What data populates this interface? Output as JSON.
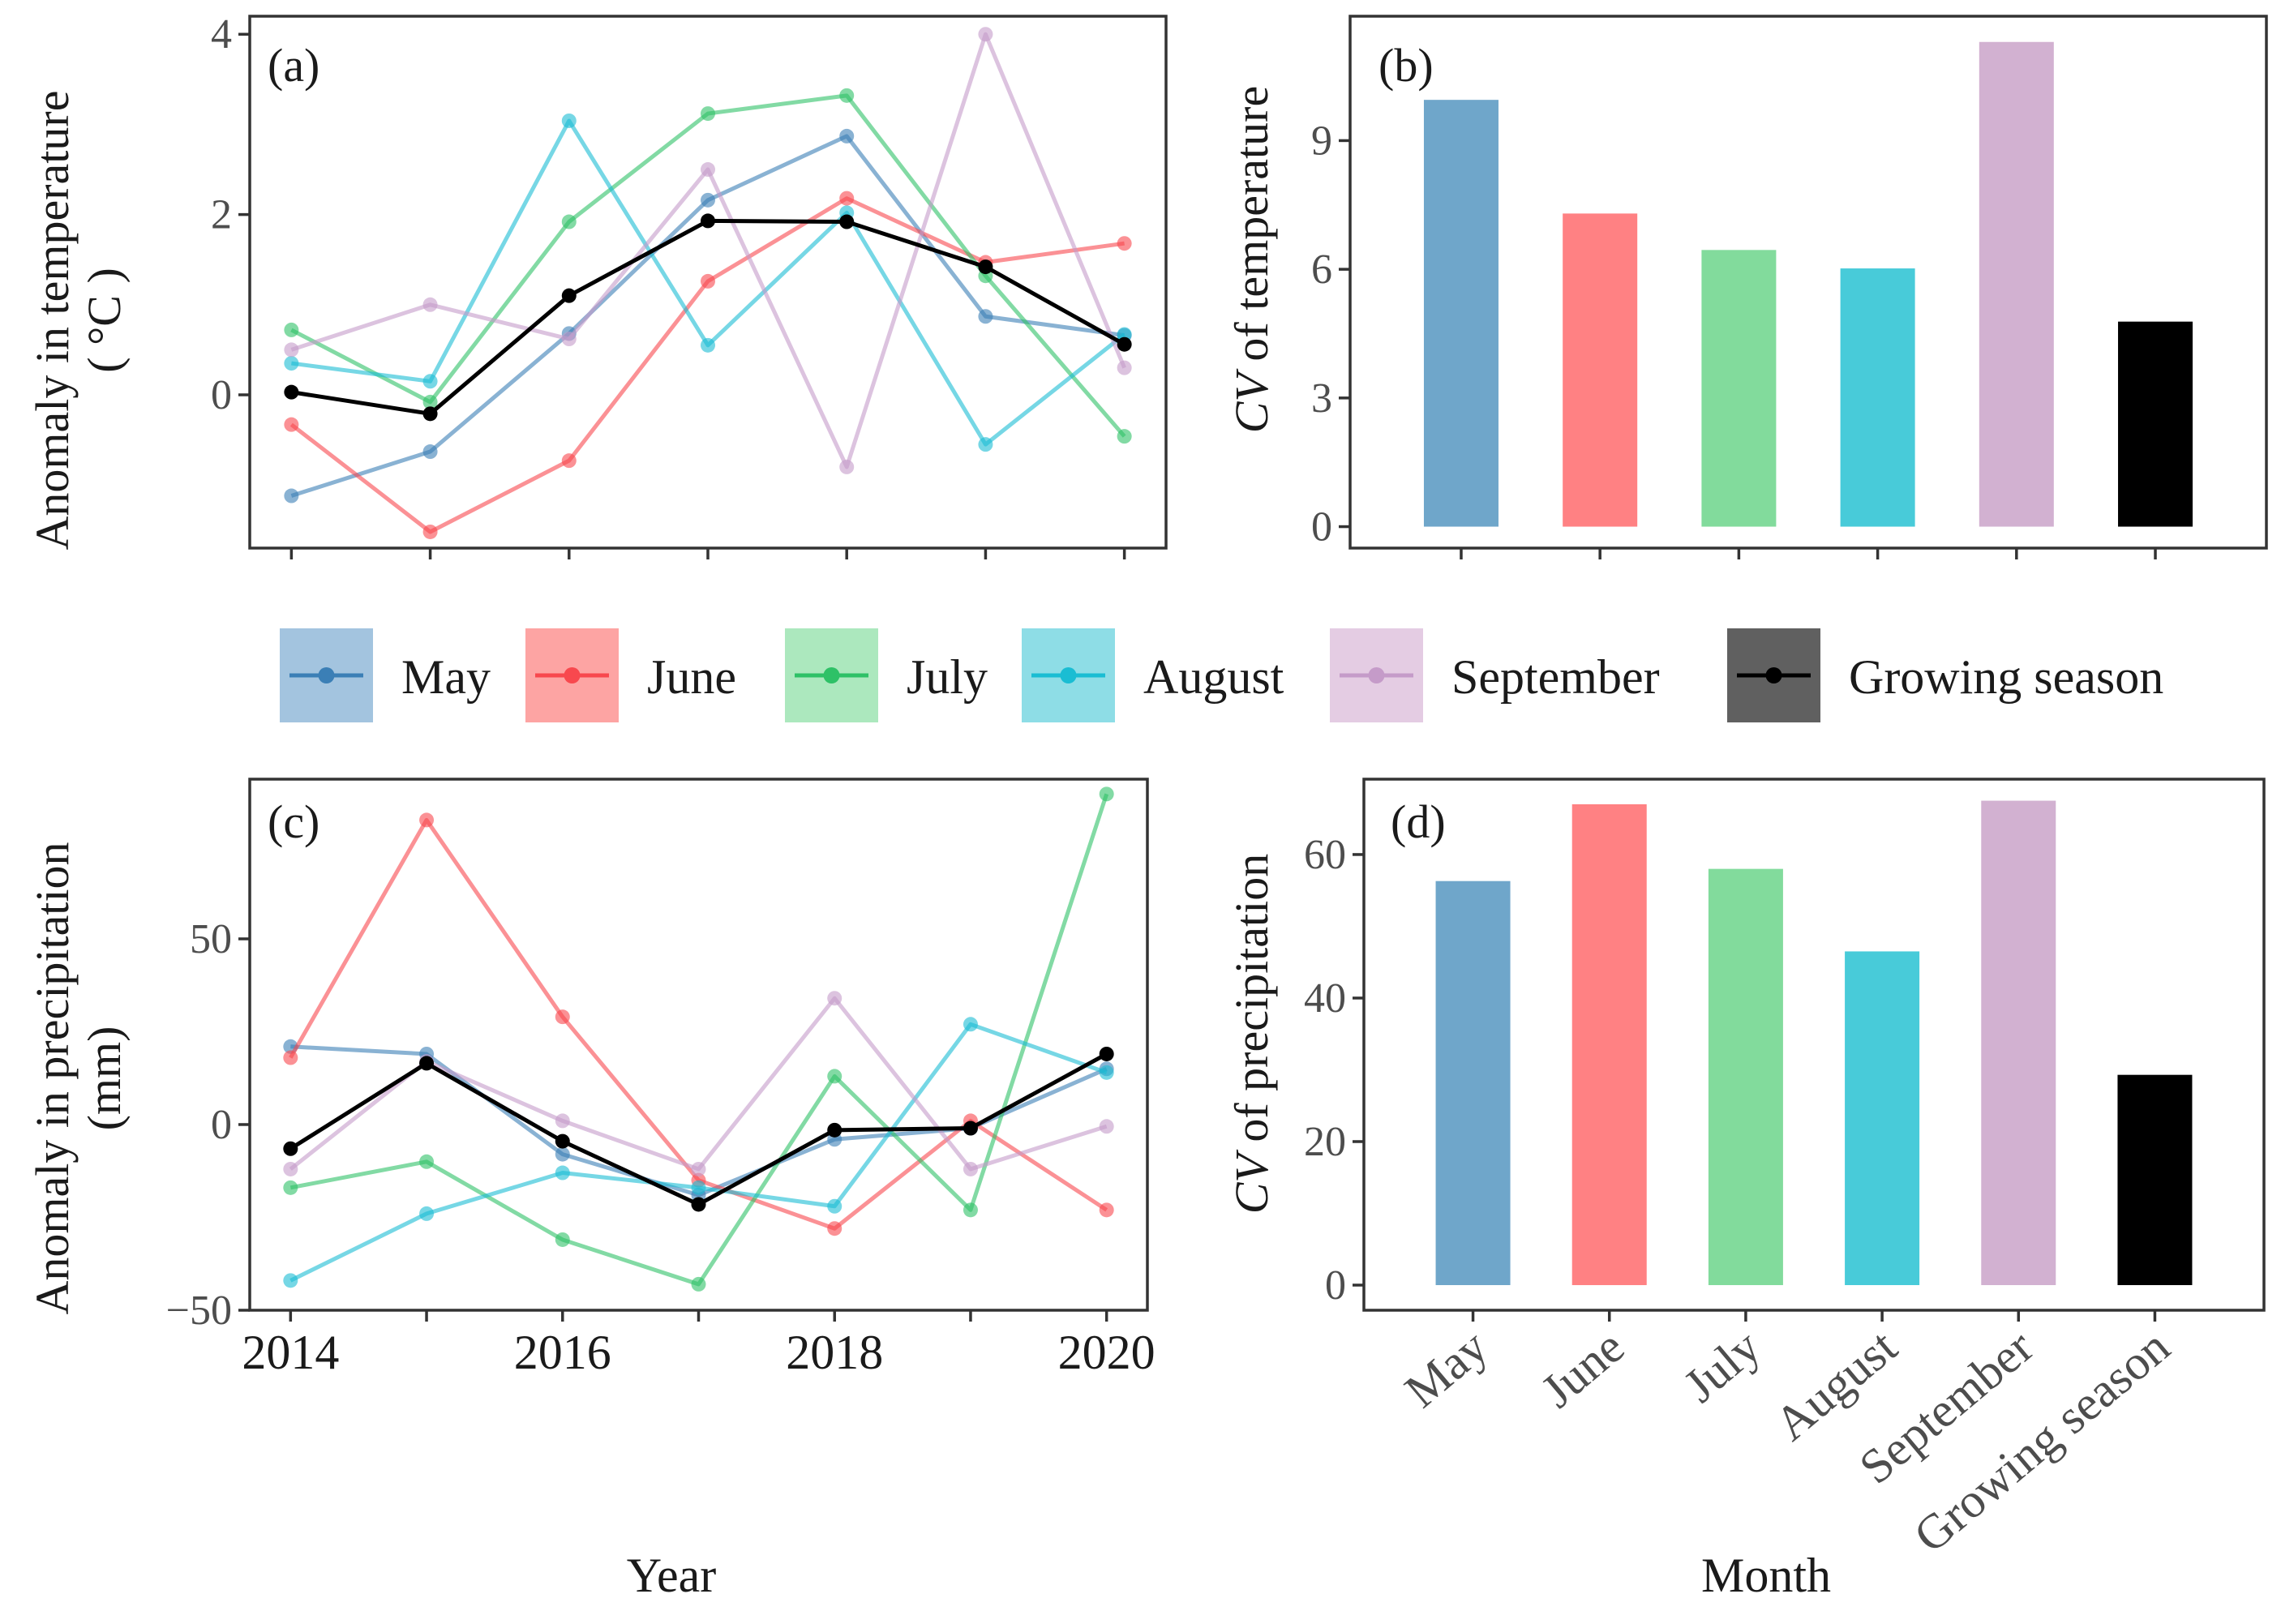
{
  "chart_data": [
    {
      "panel": "a",
      "label": "(a)",
      "type": "line",
      "ylabel": [
        "Anomaly in temperature",
        "( °C )"
      ],
      "x": [
        2014,
        2015,
        2016,
        2017,
        2018,
        2019,
        2020
      ],
      "xlim": [
        2013.7,
        2020.3
      ],
      "ylim": [
        -1.7,
        4.2
      ],
      "yticks": [
        0,
        2,
        4
      ],
      "ytick_labels": [
        "0",
        "2",
        "4"
      ],
      "series": [
        {
          "name": "May",
          "color": "#3B7FB6",
          "values": [
            -1.12,
            -0.63,
            0.68,
            2.16,
            2.87,
            0.87,
            0.66
          ]
        },
        {
          "name": "June",
          "color": "#F8484E",
          "values": [
            -0.33,
            -1.52,
            -0.73,
            1.26,
            2.18,
            1.47,
            1.68
          ]
        },
        {
          "name": "July",
          "color": "#2EC167",
          "values": [
            0.72,
            -0.08,
            1.92,
            3.12,
            3.32,
            1.32,
            -0.46
          ]
        },
        {
          "name": "August",
          "color": "#1ABDD3",
          "values": [
            0.35,
            0.15,
            3.04,
            0.55,
            2.02,
            -0.55,
            0.67
          ]
        },
        {
          "name": "September",
          "color": "#C59BC9",
          "values": [
            0.5,
            1.0,
            0.62,
            2.5,
            -0.8,
            4.0,
            0.3
          ]
        },
        {
          "name": "Growing season",
          "color": "#000000",
          "values": [
            0.03,
            -0.21,
            1.1,
            1.93,
            1.92,
            1.42,
            0.56
          ]
        }
      ]
    },
    {
      "panel": "b",
      "label": "(b)",
      "type": "bar",
      "ylabel_italic": "CV",
      "ylabel_rest": " of temperature",
      "categories": [
        "May",
        "June",
        "July",
        "August",
        "September",
        "Growing season"
      ],
      "values": [
        9.95,
        7.3,
        6.45,
        6.02,
        11.3,
        4.78
      ],
      "colors": [
        "#6FA6CA",
        "#FF8183",
        "#82DB9C",
        "#48CBD9",
        "#D2B1D1",
        "#000000"
      ],
      "ylim": [
        -0.5,
        11.9
      ],
      "yticks": [
        0,
        3,
        6,
        9
      ],
      "ytick_labels": [
        "0",
        "3",
        "6",
        "9"
      ]
    },
    {
      "panel": "c",
      "label": "(c)",
      "type": "line",
      "ylabel": [
        "Anomaly in precipitation",
        "(mm)"
      ],
      "xlabel": "Year",
      "x": [
        2014,
        2015,
        2016,
        2017,
        2018,
        2019,
        2020
      ],
      "xlim": [
        2013.7,
        2020.3
      ],
      "ylim": [
        -50,
        93
      ],
      "xticks": [
        2014,
        2016,
        2018,
        2020
      ],
      "xtick_labels": [
        "2014",
        "2016",
        "2018",
        "2020"
      ],
      "yticks": [
        -50,
        0,
        50
      ],
      "ytick_labels": [
        "−50",
        "0",
        "50"
      ],
      "series": [
        {
          "name": "May",
          "color": "#3B7FB6",
          "values": [
            21,
            19,
            -8,
            -19,
            -4,
            -1,
            15
          ]
        },
        {
          "name": "June",
          "color": "#F8484E",
          "values": [
            18,
            82,
            29,
            -15,
            -28,
            1,
            -23
          ]
        },
        {
          "name": "July",
          "color": "#2EC167",
          "values": [
            -17,
            -10,
            -31,
            -43,
            13,
            -23,
            89
          ]
        },
        {
          "name": "August",
          "color": "#1ABDD3",
          "values": [
            -42,
            -24,
            -13,
            -17,
            -22,
            27,
            14
          ]
        },
        {
          "name": "September",
          "color": "#C59BC9",
          "values": [
            -12,
            17,
            1,
            -12,
            34,
            -12,
            -0.5
          ]
        },
        {
          "name": "Growing season",
          "color": "#000000",
          "values": [
            -6.5,
            16.5,
            -4.5,
            -21.5,
            -1.5,
            -1,
            19
          ]
        }
      ]
    },
    {
      "panel": "d",
      "label": "(d)",
      "type": "bar",
      "ylabel_italic": "CV",
      "ylabel_rest": " of precipitation",
      "xlabel": "Month",
      "categories": [
        "May",
        "June",
        "July",
        "August",
        "September",
        "Growing season"
      ],
      "values": [
        56.3,
        67,
        58,
        46.5,
        67.5,
        29.3
      ],
      "colors": [
        "#6FA6CA",
        "#FF8183",
        "#82DB9C",
        "#48CBD9",
        "#D2B1D1",
        "#000000"
      ],
      "ylim": [
        -3.5,
        70.5
      ],
      "yticks": [
        0,
        20,
        40,
        60
      ],
      "ytick_labels": [
        "0",
        "20",
        "40",
        "60"
      ]
    }
  ],
  "legend": {
    "items": [
      {
        "label": "May",
        "color": "#3B7FB6",
        "bg": "#A3C4DF"
      },
      {
        "label": "June",
        "color": "#F8484E",
        "bg": "#FDA4A3"
      },
      {
        "label": "July",
        "color": "#2EC167",
        "bg": "#ACE8BE"
      },
      {
        "label": "August",
        "color": "#1ABDD3",
        "bg": "#8EDDE6"
      },
      {
        "label": "September",
        "color": "#C59BC9",
        "bg": "#E4CCE3"
      },
      {
        "label": "Growing season",
        "color": "#000000",
        "bg": "#606060"
      }
    ]
  }
}
